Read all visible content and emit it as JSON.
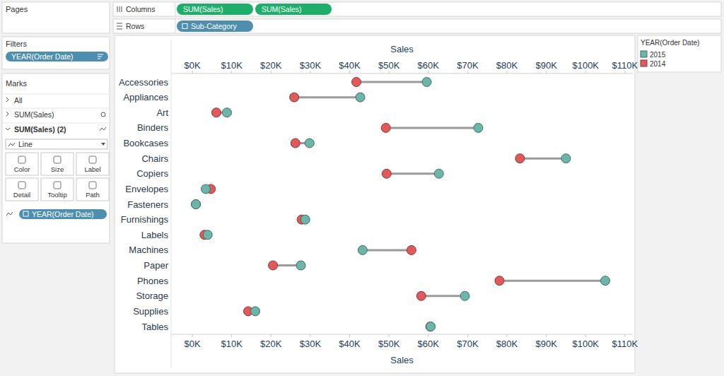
{
  "ui": {
    "pages_title": "Pages",
    "filters_title": "Filters",
    "filters": [
      "YEAR(Order Date)"
    ],
    "marks_title": "Marks",
    "marks_cards": [
      "All",
      "SUM(Sales)",
      "SUM(Sales) (2)"
    ],
    "mark_type": "Line",
    "mark_buttons": [
      "Color",
      "Size",
      "Label",
      "Detail",
      "Tooltip",
      "Path"
    ],
    "path_pill": "YEAR(Order Date)",
    "columns_label": "Columns",
    "columns_pills": [
      "SUM(Sales)",
      "SUM(Sales)"
    ],
    "rows_label": "Rows",
    "rows_pills": [
      "Sub-Category"
    ]
  },
  "chart_data": {
    "type": "dumbbell",
    "orientation": "horizontal",
    "x_label": "Sales",
    "legend_title": "YEAR(Order Date)",
    "legend": "right",
    "grid": false,
    "categories": [
      "Accessories",
      "Appliances",
      "Art",
      "Binders",
      "Bookcases",
      "Chairs",
      "Copiers",
      "Envelopes",
      "Fasteners",
      "Furnishings",
      "Labels",
      "Machines",
      "Paper",
      "Phones",
      "Storage",
      "Supplies",
      "Tables"
    ],
    "series": [
      {
        "name": "2015",
        "color": "#6cb5a9",
        "marker": "circle",
        "values": [
          59600,
          42700,
          8800,
          72700,
          29800,
          95000,
          62700,
          3400,
          900,
          28700,
          3900,
          43300,
          27600,
          105000,
          69300,
          16000,
          60600
        ]
      },
      {
        "name": "2014",
        "color": "#e05a5c",
        "marker": "circle",
        "values": [
          41700,
          25900,
          6100,
          49200,
          26200,
          83300,
          49400,
          4700,
          900,
          27800,
          3100,
          55700,
          20500,
          78100,
          58200,
          14200,
          60500
        ]
      }
    ],
    "xlim": [
      -5400,
      112000
    ],
    "xticks": [
      {
        "value": 0,
        "label": "$0K"
      },
      {
        "value": 10000,
        "label": "$10K"
      },
      {
        "value": 20000,
        "label": "$20K"
      },
      {
        "value": 30000,
        "label": "$30K"
      },
      {
        "value": 40000,
        "label": "$40K"
      },
      {
        "value": 50000,
        "label": "$50K"
      },
      {
        "value": 60000,
        "label": "$60K"
      },
      {
        "value": 70000,
        "label": "$70K"
      },
      {
        "value": 80000,
        "label": "$80K"
      },
      {
        "value": 90000,
        "label": "$90K"
      },
      {
        "value": 100000,
        "label": "$100K"
      },
      {
        "value": 110000,
        "label": "$110K"
      }
    ]
  }
}
